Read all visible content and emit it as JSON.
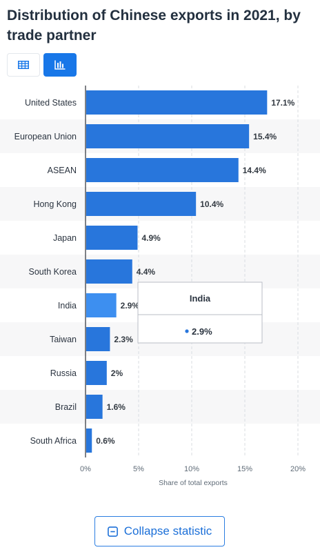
{
  "page": {
    "title": "Distribution of Chinese exports in 2021, by trade partner",
    "collapse_label": "Collapse statistic",
    "icons": {
      "table_view": "table-icon",
      "chart_view": "bar-chart-icon",
      "collapse": "minus-square-icon"
    }
  },
  "colors": {
    "bar": "#2876dc",
    "bar_highlight": "#3d8ff0",
    "accent": "#1877e8",
    "tooltip_dot": "#2876dc"
  },
  "tooltip": {
    "category": "India",
    "value_label": "2.9%"
  },
  "chart_data": {
    "type": "bar",
    "orientation": "horizontal",
    "title": "Distribution of Chinese exports in 2021, by trade partner",
    "xlabel": "Share of total exports",
    "ylabel": "",
    "categories": [
      "United States",
      "European Union",
      "ASEAN",
      "Hong Kong",
      "Japan",
      "South Korea",
      "India",
      "Taiwan",
      "Russia",
      "Brazil",
      "South Africa"
    ],
    "values": [
      17.1,
      15.4,
      14.4,
      10.4,
      4.9,
      4.4,
      2.9,
      2.3,
      2,
      1.6,
      0.6
    ],
    "data_labels": [
      "17.1%",
      "15.4%",
      "14.4%",
      "10.4%",
      "4.9%",
      "4.4%",
      "2.9%",
      "2.3%",
      "2%",
      "1.6%",
      "0.6%"
    ],
    "xlim": [
      0,
      20
    ],
    "xticks": [
      0,
      5,
      10,
      15,
      20
    ],
    "xtick_labels": [
      "0%",
      "5%",
      "10%",
      "15%",
      "20%"
    ],
    "highlighted_category": "India",
    "grid": "vertical dashed",
    "legend": "none"
  }
}
